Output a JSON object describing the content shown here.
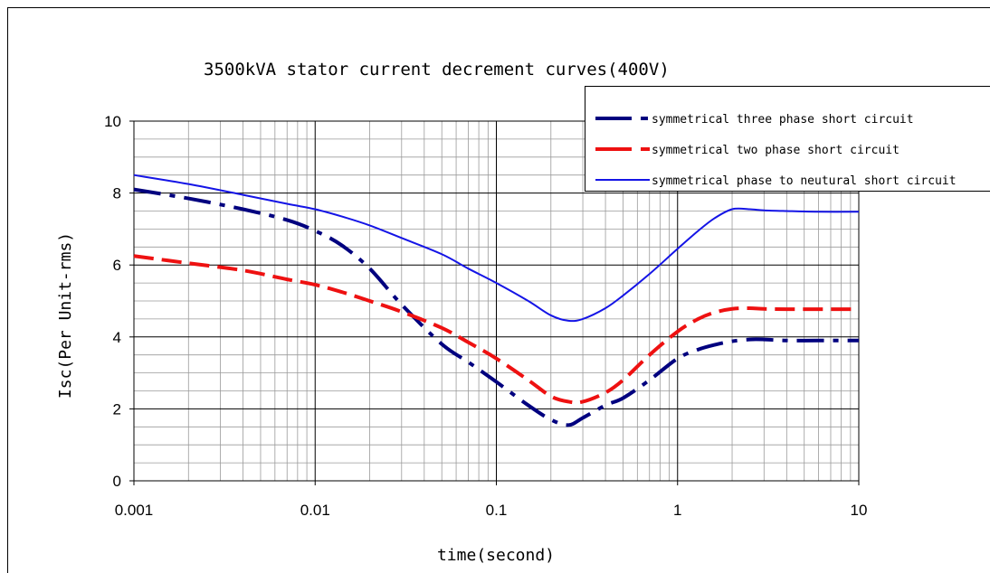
{
  "chart_data": {
    "type": "line",
    "title": "3500kVA stator current decrement curves(400V)",
    "xlabel": "time(second)",
    "ylabel": "Isc(Per Unit-rms)",
    "x_scale": "log",
    "xlim": [
      0.001,
      10
    ],
    "ylim": [
      0,
      10
    ],
    "x_ticks": [
      "0.001",
      "0.01",
      "0.1",
      "1",
      "10"
    ],
    "y_ticks": [
      "0",
      "2",
      "4",
      "6",
      "8",
      "10"
    ],
    "grid": true,
    "legend_position": "top-right",
    "series": [
      {
        "name": "symmetrical three phase short circuit",
        "color": "#00007f",
        "dash": "dash-dot",
        "x": [
          0.001,
          0.002,
          0.004,
          0.007,
          0.01,
          0.014,
          0.02,
          0.03,
          0.05,
          0.07,
          0.1,
          0.15,
          0.2,
          0.25,
          0.3,
          0.4,
          0.5,
          0.7,
          1.0,
          1.3,
          1.6,
          2.0,
          2.5,
          3.0,
          4.0,
          6.0,
          10.0
        ],
        "y": [
          8.1,
          7.85,
          7.55,
          7.25,
          6.95,
          6.55,
          5.9,
          4.9,
          3.8,
          3.3,
          2.75,
          2.1,
          1.7,
          1.55,
          1.75,
          2.1,
          2.3,
          2.8,
          3.4,
          3.65,
          3.78,
          3.88,
          3.93,
          3.93,
          3.9,
          3.9,
          3.9
        ]
      },
      {
        "name": "symmetrical two phase short circuit",
        "color": "#ee1111",
        "dash": "dashed",
        "x": [
          0.001,
          0.002,
          0.004,
          0.007,
          0.01,
          0.014,
          0.02,
          0.03,
          0.05,
          0.07,
          0.1,
          0.15,
          0.2,
          0.25,
          0.3,
          0.4,
          0.5,
          0.7,
          1.0,
          1.3,
          1.6,
          2.0,
          2.5,
          3.0,
          4.0,
          6.0,
          10.0
        ],
        "y": [
          6.25,
          6.05,
          5.85,
          5.6,
          5.45,
          5.25,
          5.0,
          4.7,
          4.25,
          3.85,
          3.4,
          2.8,
          2.35,
          2.2,
          2.2,
          2.45,
          2.8,
          3.5,
          4.15,
          4.5,
          4.68,
          4.78,
          4.8,
          4.78,
          4.77,
          4.77,
          4.77
        ]
      },
      {
        "name": "symmetrical phase to neutural short circuit",
        "color": "#1414e6",
        "dash": "solid",
        "x": [
          0.001,
          0.002,
          0.004,
          0.007,
          0.01,
          0.014,
          0.02,
          0.03,
          0.05,
          0.07,
          0.1,
          0.15,
          0.2,
          0.25,
          0.3,
          0.4,
          0.5,
          0.7,
          1.0,
          1.3,
          1.6,
          2.0,
          2.5,
          3.0,
          4.0,
          6.0,
          10.0
        ],
        "y": [
          8.5,
          8.25,
          7.95,
          7.7,
          7.55,
          7.35,
          7.1,
          6.75,
          6.3,
          5.9,
          5.5,
          5.0,
          4.6,
          4.45,
          4.5,
          4.8,
          5.15,
          5.75,
          6.45,
          6.95,
          7.3,
          7.55,
          7.55,
          7.52,
          7.5,
          7.48,
          7.48
        ]
      }
    ]
  }
}
